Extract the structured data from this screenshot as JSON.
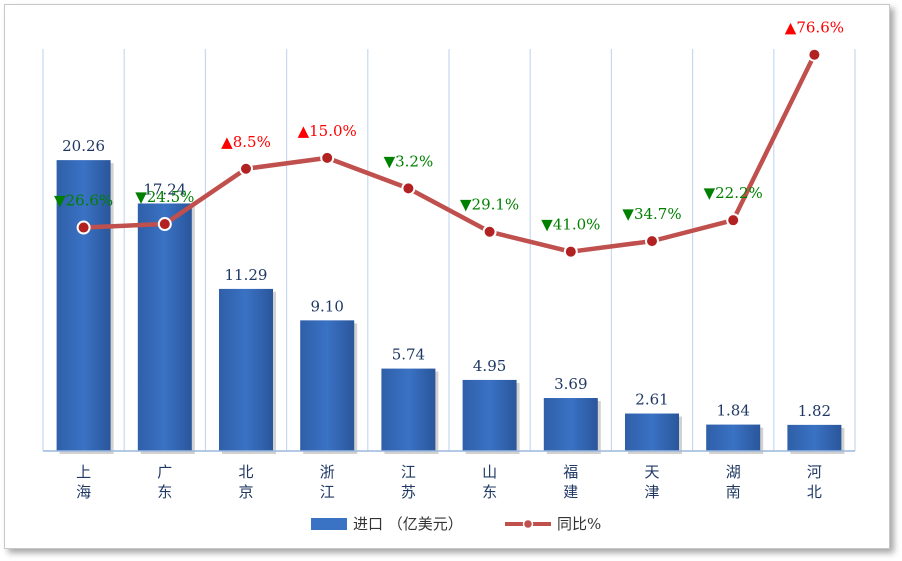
{
  "chart_data": {
    "type": "bar+line",
    "categories": [
      [
        "上",
        "海"
      ],
      [
        "广",
        "东"
      ],
      [
        "北",
        "京"
      ],
      [
        "浙",
        "江"
      ],
      [
        "江",
        "苏"
      ],
      [
        "山",
        "东"
      ],
      [
        "福",
        "建"
      ],
      [
        "天",
        "津"
      ],
      [
        "湖",
        "南"
      ],
      [
        "河",
        "北"
      ]
    ],
    "series": [
      {
        "name": "进口（亿美元）",
        "kind": "bar",
        "values": [
          20.26,
          17.24,
          11.29,
          9.1,
          5.74,
          4.95,
          3.69,
          2.61,
          1.84,
          1.82
        ],
        "labels": [
          "20.26",
          "17.24",
          "11.29",
          "9.10",
          "5.74",
          "4.95",
          "3.69",
          "2.61",
          "1.84",
          "1.82"
        ],
        "color": "#3a72c4"
      },
      {
        "name": "同比%",
        "kind": "line",
        "values": [
          -26.6,
          -24.5,
          8.5,
          15.0,
          -3.2,
          -29.1,
          -41.0,
          -34.7,
          -22.2,
          76.6
        ],
        "labels": [
          "▼26.6%",
          "▼24.5%",
          "▲8.5%",
          "▲15.0%",
          "▼3.2%",
          "▼29.1%",
          "▼41.0%",
          "▼34.7%",
          "▼22.2%",
          "▲76.6%"
        ],
        "color": "#c0504d"
      }
    ],
    "colors": {
      "up": "#ff0000",
      "down": "#008000",
      "grid": "#c6d9f1"
    },
    "bar_ylim": [
      0,
      28
    ],
    "line_ylim": [
      -160,
      80
    ],
    "grid": "vertical"
  },
  "legend": {
    "bar_label": "进口 （亿美元）",
    "line_label": "同比%"
  }
}
